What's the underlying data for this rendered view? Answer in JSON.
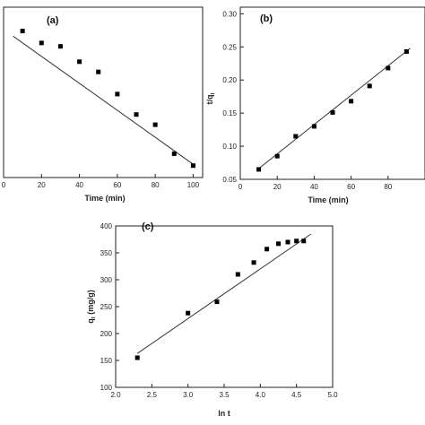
{
  "chart_data": [
    {
      "type": "scatter",
      "panel_label": "(a)",
      "xlabel": "Time (min)",
      "ylabel": "",
      "xlim": [
        0,
        105
      ],
      "xticks": [
        0,
        20,
        40,
        60,
        80,
        100
      ],
      "ylim": [
        0,
        1
      ],
      "yticks": [],
      "series": [
        {
          "x": [
            10,
            20,
            30,
            40,
            50,
            60,
            70,
            80,
            90,
            100
          ],
          "y": [
            0.86,
            0.79,
            0.77,
            0.68,
            0.62,
            0.49,
            0.37,
            0.31,
            0.14,
            0.07
          ]
        }
      ],
      "fit": {
        "x": [
          5,
          101
        ],
        "y": [
          0.83,
          0.07
        ]
      }
    },
    {
      "type": "scatter",
      "panel_label": "(b)",
      "xlabel": "Time (min)",
      "ylabel": "t/q",
      "ylabel_sub": "t",
      "xlim": [
        0,
        100
      ],
      "xticks": [
        0,
        20,
        40,
        60,
        80
      ],
      "ylim": [
        0.05,
        0.31
      ],
      "yticks": [
        0.05,
        0.1,
        0.15,
        0.2,
        0.25,
        0.3
      ],
      "ytick_labels": [
        "0.05",
        "0.10",
        "0.15",
        "0.20",
        "0.25",
        "0.30"
      ],
      "series": [
        {
          "x": [
            10,
            20,
            30,
            40,
            50,
            60,
            70,
            80,
            90
          ],
          "y": [
            0.065,
            0.085,
            0.115,
            0.13,
            0.151,
            0.168,
            0.191,
            0.218,
            0.243
          ]
        }
      ],
      "fit": {
        "x": [
          9,
          92
        ],
        "y": [
          0.064,
          0.248
        ]
      }
    },
    {
      "type": "scatter",
      "panel_label": "(c)",
      "xlabel": "ln t",
      "ylabel": "q",
      "ylabel_sub": "t",
      "ylabel_unit": " (mg/g)",
      "xlim": [
        2.0,
        5.0
      ],
      "xticks": [
        2.0,
        2.5,
        3.0,
        3.5,
        4.0,
        4.5,
        5.0
      ],
      "xtick_labels": [
        "2.0",
        "2.5",
        "3.0",
        "3.5",
        "4.0",
        "4.5",
        "5.0"
      ],
      "ylim": [
        100,
        400
      ],
      "yticks": [
        100,
        150,
        200,
        250,
        300,
        350,
        400
      ],
      "ytick_labels": [
        "100",
        "150",
        "200",
        "250",
        "300",
        "350",
        "400"
      ],
      "series": [
        {
          "x": [
            2.3,
            3.0,
            3.4,
            3.69,
            3.91,
            4.09,
            4.25,
            4.38,
            4.5,
            4.6
          ],
          "y": [
            155,
            238,
            259,
            310,
            332,
            357,
            367,
            370,
            372,
            372
          ]
        }
      ],
      "fit": {
        "x": [
          2.3,
          4.7
        ],
        "y": [
          163,
          385
        ]
      }
    }
  ]
}
